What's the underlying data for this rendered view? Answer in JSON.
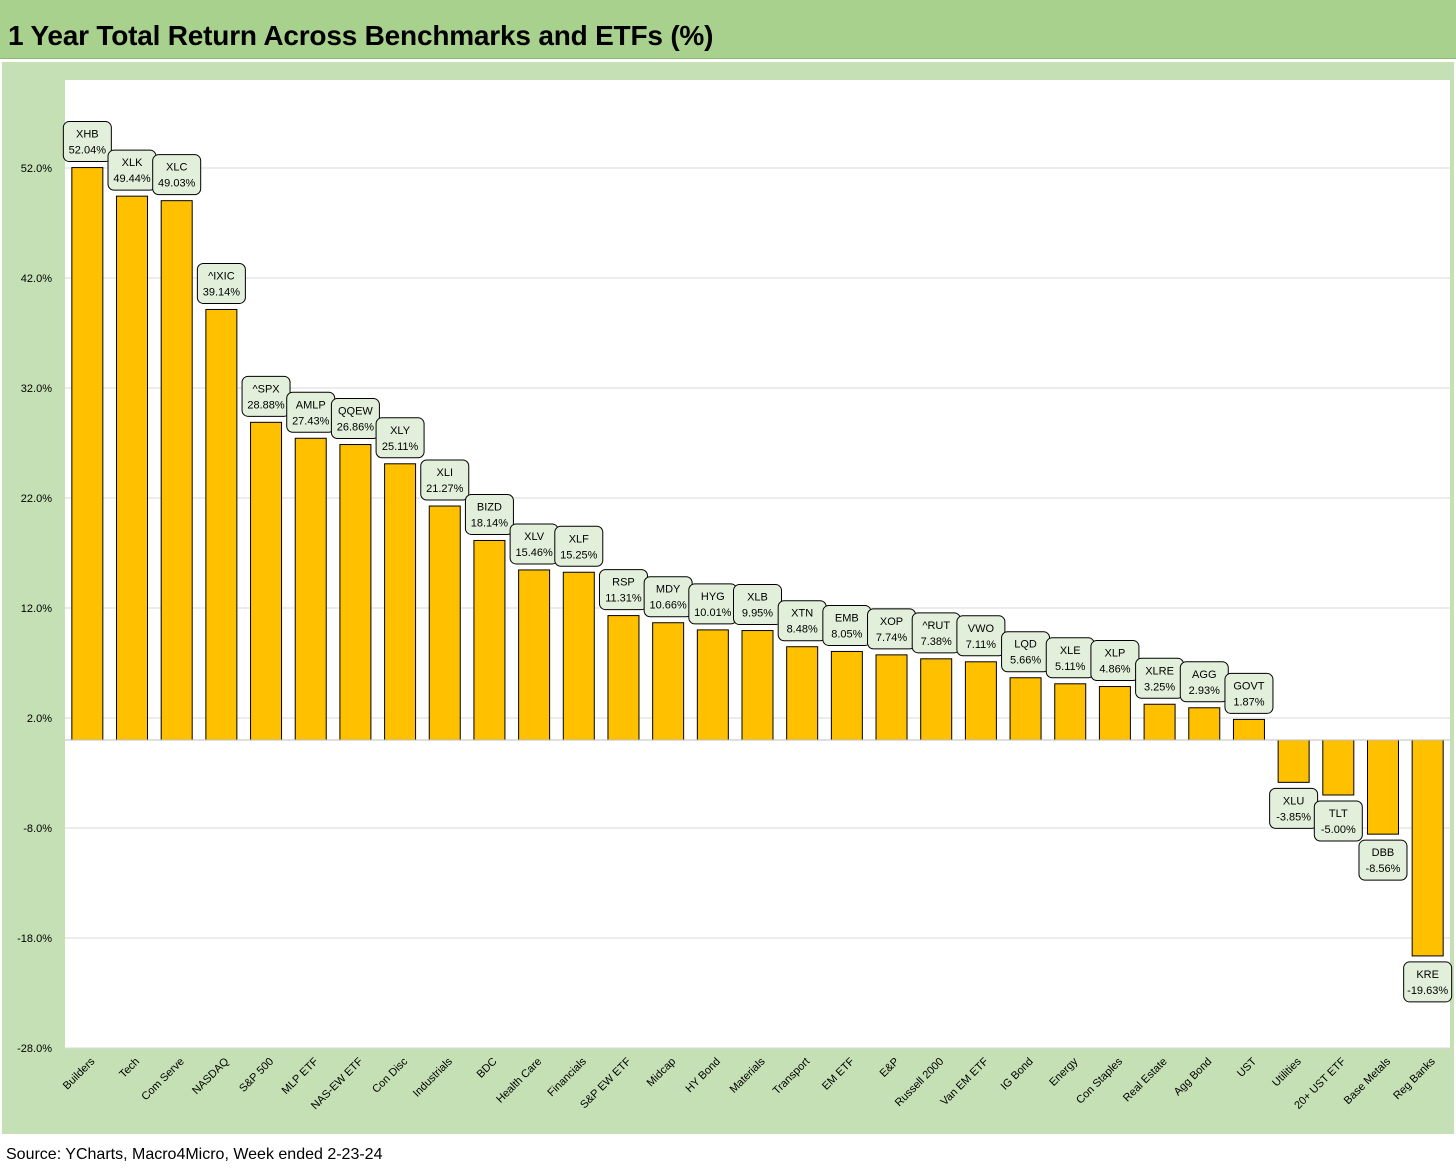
{
  "title": "1 Year Total Return Across Benchmarks and ETFs (%)",
  "source": "Source: YCharts, Macro4Micro, Week ended 2-23-24",
  "colors": {
    "title_bg": "#a9d18e",
    "chart_bg": "#c5e0b4",
    "bar": "#ffc000",
    "label_bg": "#e2efda"
  },
  "chart_data": {
    "type": "bar",
    "title": "1 Year Total Return Across Benchmarks and ETFs (%)",
    "xlabel": "",
    "ylabel": "",
    "ylim": [
      -28,
      60
    ],
    "yticks": [
      52,
      42,
      32,
      22,
      12,
      2,
      -8,
      -18,
      -28
    ],
    "ytick_labels": [
      "52.0%",
      "42.0%",
      "32.0%",
      "22.0%",
      "12.0%",
      "2.0%",
      "-8.0%",
      "-18.0%",
      "-28.0%"
    ],
    "grid": true,
    "legend": "none",
    "categories": [
      "Builders",
      "Tech",
      "Com Serve",
      "NASDAQ",
      "S&P 500",
      "MLP ETF",
      "NAS-EW ETF",
      "Con Disc",
      "Industrials",
      "BDC",
      "Health Care",
      "Financials",
      "S&P EW ETF",
      "Midcap",
      "HY Bond",
      "Materials",
      "Transport",
      "EM ETF",
      "E&P",
      "Russell 2000",
      "Van EM ETF",
      "IG Bond",
      "Energy",
      "Con Staples",
      "Real Estate",
      "Agg Bond",
      "UST",
      "Utilities",
      "20+ UST ETF",
      "Base Metals",
      "Reg Banks"
    ],
    "tickers": [
      "XHB",
      "XLK",
      "XLC",
      "^IXIC",
      "^SPX",
      "AMLP",
      "QQEW",
      "XLY",
      "XLI",
      "BIZD",
      "XLV",
      "XLF",
      "RSP",
      "MDY",
      "HYG",
      "XLB",
      "XTN",
      "EMB",
      "XOP",
      "^RUT",
      "VWO",
      "LQD",
      "XLE",
      "XLP",
      "XLRE",
      "AGG",
      "GOVT",
      "XLU",
      "TLT",
      "DBB",
      "KRE"
    ],
    "values": [
      52.04,
      49.44,
      49.03,
      39.14,
      28.88,
      27.43,
      26.86,
      25.11,
      21.27,
      18.14,
      15.46,
      15.25,
      11.31,
      10.66,
      10.01,
      9.95,
      8.48,
      8.05,
      7.74,
      7.38,
      7.11,
      5.66,
      5.11,
      4.86,
      3.25,
      2.93,
      1.87,
      -3.85,
      -5.0,
      -8.56,
      -19.63
    ],
    "value_labels": [
      "52.04%",
      "49.44%",
      "49.03%",
      "39.14%",
      "28.88%",
      "27.43%",
      "26.86%",
      "25.11%",
      "21.27%",
      "18.14%",
      "15.46%",
      "15.25%",
      "11.31%",
      "10.66%",
      "10.01%",
      "9.95%",
      "8.48%",
      "8.05%",
      "7.74%",
      "7.38%",
      "7.11%",
      "5.66%",
      "5.11%",
      "4.86%",
      "3.25%",
      "2.93%",
      "1.87%",
      "-3.85%",
      "-5.00%",
      "-8.56%",
      "-19.63%"
    ]
  }
}
